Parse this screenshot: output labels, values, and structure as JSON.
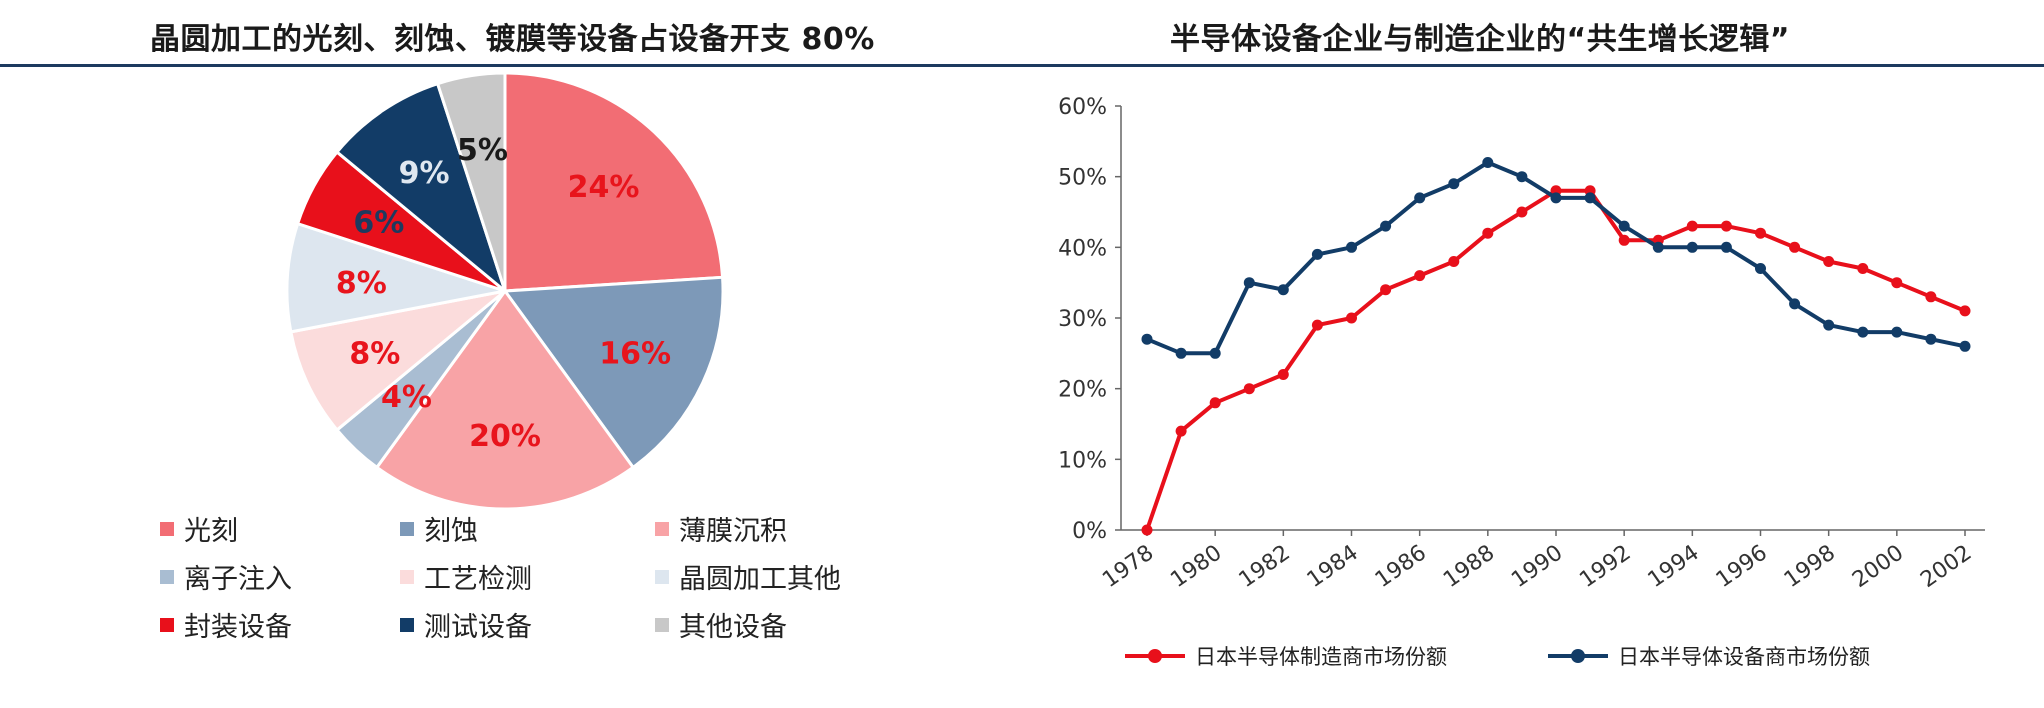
{
  "chart_data": [
    {
      "type": "pie",
      "title": "晶圆加工的光刻、刻蚀、镀膜等设备占设备开支 80%",
      "slices": [
        {
          "name": "光刻",
          "value": 24,
          "label": "24%",
          "color": "#f26d74",
          "label_color": "#e8141c"
        },
        {
          "name": "刻蚀",
          "value": 16,
          "label": "16%",
          "color": "#7d99b8",
          "label_color": "#e8141c"
        },
        {
          "name": "薄膜沉积",
          "value": 20,
          "label": "20%",
          "color": "#f8a3a6",
          "label_color": "#e8141c"
        },
        {
          "name": "离子注入",
          "value": 4,
          "label": "4%",
          "color": "#a9bdd2",
          "label_color": "#e8141c"
        },
        {
          "name": "工艺检测",
          "value": 8,
          "label": "8%",
          "color": "#fbdcdc",
          "label_color": "#e8141c"
        },
        {
          "name": "晶圆加工其他",
          "value": 8,
          "label": "8%",
          "color": "#dde6ef",
          "label_color": "#e8141c"
        },
        {
          "name": "封装设备",
          "value": 6,
          "label": "6%",
          "color": "#e8101b",
          "label_color": "#1d3a5f"
        },
        {
          "name": "测试设备",
          "value": 9,
          "label": "9%",
          "color": "#123c67",
          "label_color": "#dfe7f0"
        },
        {
          "name": "其他设备",
          "value": 5,
          "label": "5%",
          "color": "#c8c8c8",
          "label_color": "#1a1a1a"
        }
      ],
      "legend_position": "bottom"
    },
    {
      "type": "line",
      "title": "半导体设备企业与制造企业的“共生增长逻辑”",
      "xlabel": "",
      "ylabel": "",
      "x": [
        1978,
        1979,
        1980,
        1981,
        1982,
        1983,
        1984,
        1985,
        1986,
        1987,
        1988,
        1989,
        1990,
        1991,
        1992,
        1993,
        1994,
        1995,
        1996,
        1997,
        1998,
        1999,
        2000,
        2001,
        2002
      ],
      "x_ticks": [
        "1978",
        "1980",
        "1982",
        "1984",
        "1986",
        "1988",
        "1990",
        "1992",
        "1994",
        "1996",
        "1998",
        "2000",
        "2002"
      ],
      "y_ticks": [
        "0%",
        "10%",
        "20%",
        "30%",
        "40%",
        "50%",
        "60%"
      ],
      "ylim": [
        0,
        60
      ],
      "series": [
        {
          "name": "日本半导体制造商市场份额",
          "color": "#e8101b",
          "values": [
            0,
            14,
            18,
            20,
            22,
            29,
            30,
            34,
            36,
            38,
            42,
            45,
            48,
            48,
            41,
            41,
            43,
            43,
            42,
            40,
            38,
            37,
            35,
            33,
            31
          ]
        },
        {
          "name": "日本半导体设备商市场份额",
          "color": "#123c67",
          "values": [
            27,
            25,
            25,
            35,
            34,
            39,
            40,
            43,
            47,
            49,
            52,
            50,
            47,
            47,
            43,
            40,
            40,
            40,
            37,
            32,
            29,
            28,
            28,
            27,
            26
          ]
        }
      ],
      "grid": false,
      "legend_position": "bottom"
    }
  ]
}
